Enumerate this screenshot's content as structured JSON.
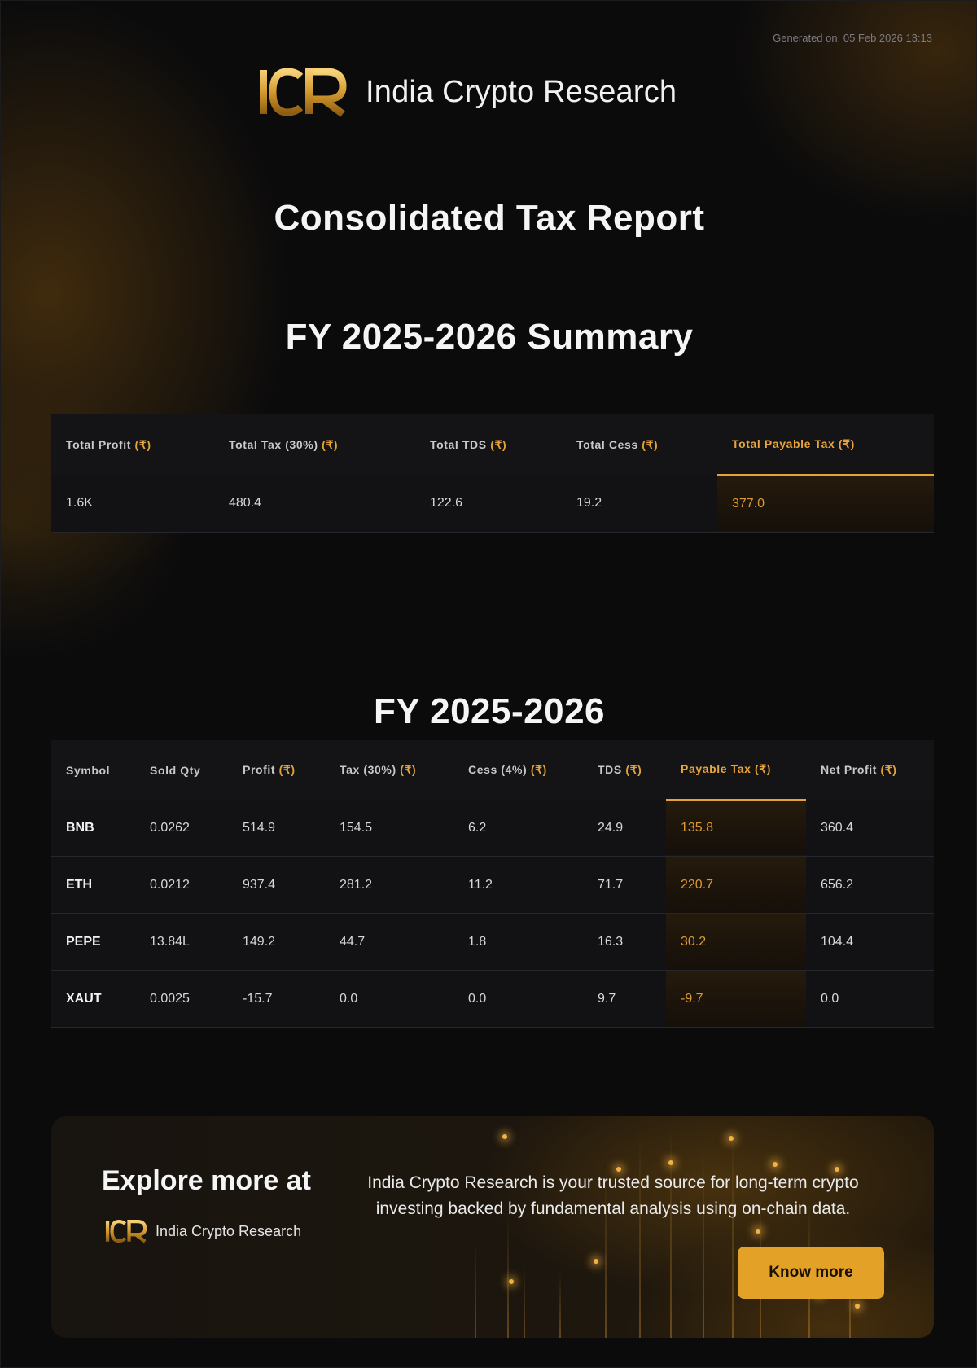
{
  "generated": "Generated on: 05 Feb 2026 13:13",
  "brand": {
    "logo_text": "ICR",
    "name": "India Crypto Research",
    "accent_color": "#e3a23a"
  },
  "title": "Consolidated Tax Report",
  "summary_heading": "FY 2025-2026 Summary",
  "summary": {
    "headers": [
      {
        "label": "Total Profit",
        "unit": "(₹)"
      },
      {
        "label": "Total Tax (30%)",
        "unit": "(₹)"
      },
      {
        "label": "Total TDS",
        "unit": "(₹)"
      },
      {
        "label": "Total Cess",
        "unit": "(₹)"
      },
      {
        "label": "Total Payable Tax (₹)",
        "unit": ""
      }
    ],
    "values": [
      "1.6K",
      "480.4",
      "122.6",
      "19.2",
      "377.0"
    ]
  },
  "holdings_heading": "FY 2025-2026",
  "holdings": {
    "headers": [
      {
        "label": "Symbol",
        "unit": ""
      },
      {
        "label": "Sold Qty",
        "unit": ""
      },
      {
        "label": "Profit",
        "unit": "(₹)"
      },
      {
        "label": "Tax (30%)",
        "unit": "(₹)"
      },
      {
        "label": "Cess (4%)",
        "unit": "(₹)"
      },
      {
        "label": "TDS",
        "unit": "(₹)"
      },
      {
        "label": "Payable Tax (₹)",
        "unit": ""
      },
      {
        "label": "Net Profit",
        "unit": "(₹)"
      }
    ],
    "rows": [
      [
        "BNB",
        "0.0262",
        "514.9",
        "154.5",
        "6.2",
        "24.9",
        "135.8",
        "360.4"
      ],
      [
        "ETH",
        "0.0212",
        "937.4",
        "281.2",
        "11.2",
        "71.7",
        "220.7",
        "656.2"
      ],
      [
        "PEPE",
        "13.84L",
        "149.2",
        "44.7",
        "1.8",
        "16.3",
        "30.2",
        "104.4"
      ],
      [
        "XAUT",
        "0.0025",
        "-15.7",
        "0.0",
        "0.0",
        "9.7",
        "-9.7",
        "0.0"
      ]
    ]
  },
  "cta": {
    "title": "Explore more at",
    "brand_name": "India Crypto Research",
    "text": "India Crypto Research is your trusted source for long-term crypto investing backed by fundamental analysis using on-chain data.",
    "button_label": "Know more"
  }
}
